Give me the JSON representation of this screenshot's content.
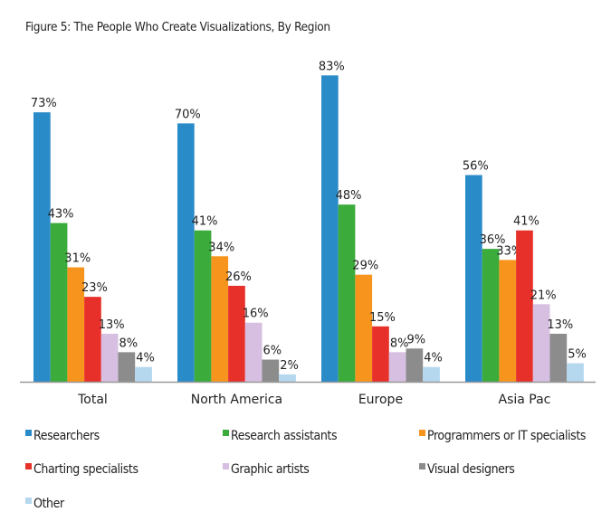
{
  "chart_data": {
    "type": "bar",
    "title": "Figure 5: The People Who Create Visualizations, By Region",
    "xlabel": "",
    "ylabel": "",
    "ylim": [
      0,
      100
    ],
    "grid": false,
    "legend_position": "bottom",
    "categories": [
      "Total",
      "North America",
      "Europe",
      "Asia Pac"
    ],
    "series": [
      {
        "name": "Researchers",
        "color": "#2a8bc9",
        "values": [
          73,
          70,
          83,
          56
        ]
      },
      {
        "name": "Research assistants",
        "color": "#3bab3b",
        "values": [
          43,
          41,
          48,
          36
        ]
      },
      {
        "name": "Programmers or IT specialists",
        "color": "#f7941d",
        "values": [
          31,
          34,
          29,
          33
        ]
      },
      {
        "name": "Charting specialists",
        "color": "#e8302a",
        "values": [
          23,
          26,
          15,
          41
        ]
      },
      {
        "name": "Graphic artists",
        "color": "#d6bfe0",
        "values": [
          13,
          16,
          8,
          21
        ]
      },
      {
        "name": "Visual designers",
        "color": "#8c8c8c",
        "values": [
          8,
          6,
          9,
          13
        ]
      },
      {
        "name": "Other",
        "color": "#b5d8ef",
        "values": [
          4,
          2,
          4,
          5
        ]
      }
    ]
  }
}
